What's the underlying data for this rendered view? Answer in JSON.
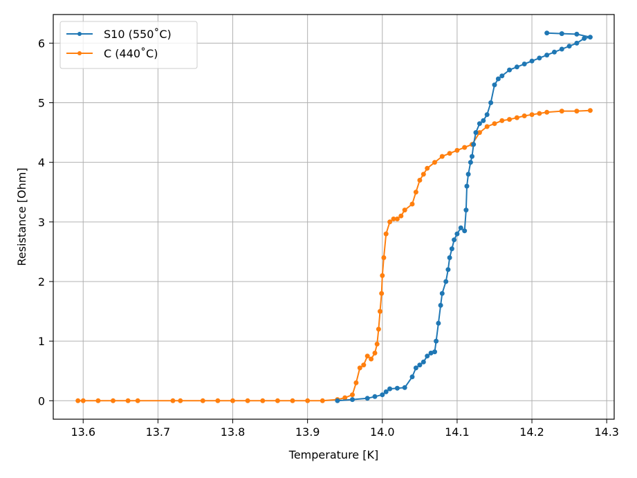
{
  "chart_data": {
    "type": "line",
    "xlabel": "Temperature [K]",
    "ylabel": "Resistance [Ohm]",
    "xlim": [
      13.56,
      14.31
    ],
    "ylim": [
      -0.31,
      6.48
    ],
    "xticks": [
      "13.6",
      "13.7",
      "13.8",
      "13.9",
      "14.0",
      "14.1",
      "14.2",
      "14.3"
    ],
    "xtick_values": [
      13.6,
      13.7,
      13.8,
      13.9,
      14.0,
      14.1,
      14.2,
      14.3
    ],
    "yticks": [
      "0",
      "1",
      "2",
      "3",
      "4",
      "5",
      "6"
    ],
    "ytick_values": [
      0,
      1,
      2,
      3,
      4,
      5,
      6
    ],
    "grid": true,
    "legend_position": "top-left",
    "series": [
      {
        "name": "S10 (550$^\\circ$C)",
        "label_text": "S10 (550˚C)",
        "color": "#1f77b4",
        "x": [
          13.94,
          13.96,
          13.98,
          13.99,
          14.0,
          14.005,
          14.01,
          14.02,
          14.03,
          14.04,
          14.045,
          14.05,
          14.055,
          14.06,
          14.065,
          14.07,
          14.072,
          14.075,
          14.078,
          14.08,
          14.085,
          14.088,
          14.09,
          14.093,
          14.096,
          14.1,
          14.105,
          14.11,
          14.112,
          14.113,
          14.115,
          14.118,
          14.12,
          14.122,
          14.125,
          14.13,
          14.135,
          14.14,
          14.145,
          14.15,
          14.155,
          14.16,
          14.17,
          14.18,
          14.19,
          14.2,
          14.21,
          14.22,
          14.23,
          14.24,
          14.25,
          14.26,
          14.27,
          14.278,
          14.26,
          14.24,
          14.22
        ],
        "y": [
          0.0,
          0.02,
          0.04,
          0.07,
          0.1,
          0.15,
          0.2,
          0.21,
          0.22,
          0.4,
          0.55,
          0.6,
          0.65,
          0.75,
          0.8,
          0.82,
          1.0,
          1.3,
          1.6,
          1.8,
          2.0,
          2.2,
          2.4,
          2.55,
          2.7,
          2.8,
          2.9,
          2.85,
          3.2,
          3.6,
          3.8,
          4.0,
          4.1,
          4.3,
          4.5,
          4.65,
          4.7,
          4.8,
          5.0,
          5.3,
          5.4,
          5.45,
          5.55,
          5.6,
          5.65,
          5.7,
          5.75,
          5.8,
          5.85,
          5.9,
          5.95,
          6.0,
          6.08,
          6.1,
          6.15,
          6.16,
          6.17
        ]
      },
      {
        "name": "C (440$^\\circ$C)",
        "label_text": "C (440˚C)",
        "color": "#ff7f0e",
        "x": [
          13.593,
          13.6,
          13.62,
          13.64,
          13.66,
          13.673,
          13.72,
          13.73,
          13.76,
          13.78,
          13.8,
          13.82,
          13.84,
          13.86,
          13.88,
          13.9,
          13.92,
          13.94,
          13.95,
          13.96,
          13.965,
          13.97,
          13.975,
          13.98,
          13.985,
          13.99,
          13.993,
          13.995,
          13.997,
          13.999,
          14.0,
          14.002,
          14.005,
          14.01,
          14.015,
          14.02,
          14.025,
          14.03,
          14.04,
          14.045,
          14.05,
          14.055,
          14.06,
          14.07,
          14.08,
          14.09,
          14.1,
          14.11,
          14.12,
          14.13,
          14.14,
          14.15,
          14.16,
          14.17,
          14.18,
          14.19,
          14.2,
          14.21,
          14.22,
          14.24,
          14.26,
          14.278
        ],
        "y": [
          0.0,
          0.0,
          0.0,
          0.0,
          0.0,
          0.0,
          0.0,
          0.0,
          0.0,
          0.0,
          0.0,
          0.0,
          0.0,
          0.0,
          0.0,
          0.0,
          0.0,
          0.02,
          0.05,
          0.1,
          0.3,
          0.55,
          0.6,
          0.75,
          0.7,
          0.8,
          0.95,
          1.2,
          1.5,
          1.8,
          2.1,
          2.4,
          2.8,
          3.0,
          3.05,
          3.05,
          3.1,
          3.2,
          3.3,
          3.5,
          3.7,
          3.8,
          3.9,
          4.0,
          4.1,
          4.15,
          4.2,
          4.25,
          4.3,
          4.5,
          4.6,
          4.65,
          4.7,
          4.72,
          4.75,
          4.78,
          4.8,
          4.82,
          4.84,
          4.86,
          4.86,
          4.87
        ]
      }
    ]
  }
}
